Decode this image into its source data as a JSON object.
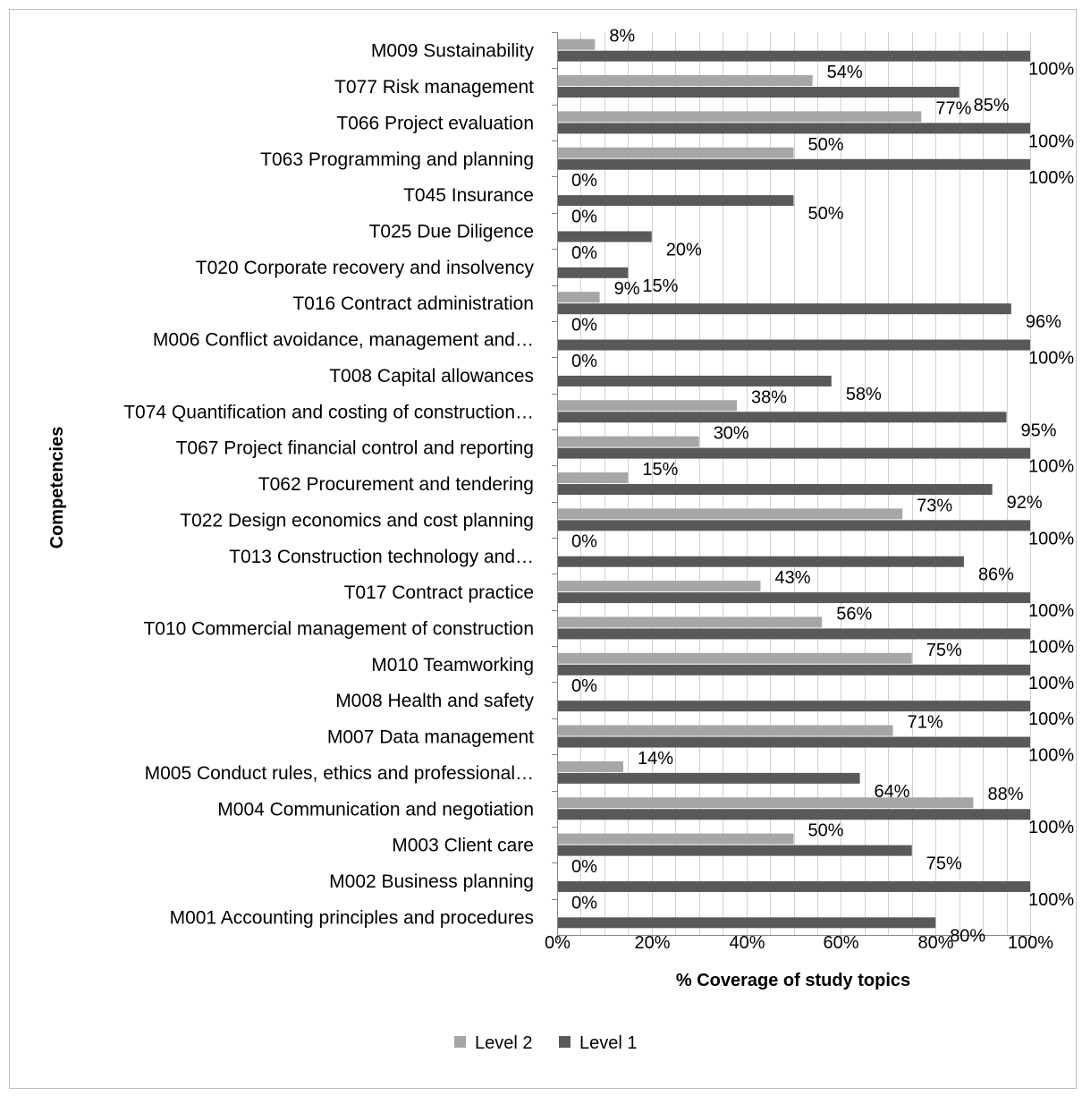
{
  "chart_data": {
    "type": "bar",
    "orientation": "horizontal",
    "xlabel": "% Coverage of study topics",
    "ylabel": "Competencies",
    "xlim": [
      0,
      100
    ],
    "x_ticks": [
      "0%",
      "20%",
      "40%",
      "60%",
      "80%",
      "100%"
    ],
    "grid": "vertical",
    "legend_position": "bottom",
    "categories": [
      "M009 Sustainability",
      "T077 Risk management",
      "T066 Project evaluation",
      "T063 Programming and planning",
      "T045 Insurance",
      "T025 Due Diligence",
      "T020 Corporate recovery and insolvency",
      "T016 Contract administration",
      "M006 Conflict avoidance, management and…",
      "T008 Capital allowances",
      "T074 Quantification and costing of construction…",
      "T067 Project financial control and reporting",
      "T062 Procurement and tendering",
      "T022 Design economics and cost planning",
      "T013 Construction technology and…",
      "T017 Contract practice",
      "T010 Commercial management of construction",
      "M010 Teamworking",
      "M008 Health and safety",
      "M007 Data management",
      "M005 Conduct rules, ethics and professional…",
      "M004 Communication and negotiation",
      "M003 Client care",
      "M002 Business planning",
      "M001 Accounting principles and procedures"
    ],
    "series": [
      {
        "name": "Level 2",
        "color": "#a6a6a6",
        "values": [
          8,
          54,
          77,
          50,
          0,
          0,
          0,
          9,
          0,
          0,
          38,
          30,
          15,
          73,
          0,
          43,
          56,
          75,
          0,
          71,
          14,
          88,
          50,
          0,
          0
        ],
        "labels": [
          "8%",
          "54%",
          "77%",
          "50%",
          "0%",
          "0%",
          "0%",
          "9%",
          "0%",
          "0%",
          "38%",
          "30%",
          "15%",
          "73%",
          "0%",
          "43%",
          "56%",
          "75%",
          "0%",
          "71%",
          "14%",
          "88%",
          "50%",
          "0%",
          "0%"
        ]
      },
      {
        "name": "Level 1",
        "color": "#595959",
        "values": [
          100,
          85,
          100,
          100,
          50,
          20,
          15,
          96,
          100,
          58,
          95,
          100,
          92,
          100,
          86,
          100,
          100,
          100,
          100,
          100,
          64,
          100,
          75,
          100,
          80
        ],
        "labels": [
          "100%",
          "85%",
          "100%",
          "100%",
          "50%",
          "20%",
          "15%",
          "96%",
          "100%",
          "58%",
          "95%",
          "100%",
          "92%",
          "100%",
          "86%",
          "100%",
          "100%",
          "100%",
          "100%",
          "100%",
          "64%",
          "100%",
          "75%",
          "100%",
          "80%"
        ]
      }
    ]
  }
}
